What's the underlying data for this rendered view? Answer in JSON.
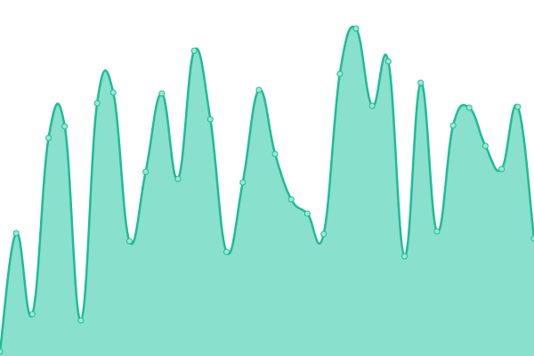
{
  "chart_data": {
    "type": "area",
    "values": [
      5,
      138,
      47,
      245,
      258,
      40,
      284,
      296,
      129,
      207,
      295,
      199,
      343,
      266,
      117,
      195,
      299,
      227,
      176,
      160,
      137,
      317,
      368,
      281,
      331,
      112,
      307,
      140,
      259,
      279,
      236,
      210,
      280,
      132
    ],
    "ylim": [
      0,
      400
    ],
    "color": "#1ebc96",
    "fill": "#88e0cd",
    "point_color": "#9ae8d6"
  }
}
